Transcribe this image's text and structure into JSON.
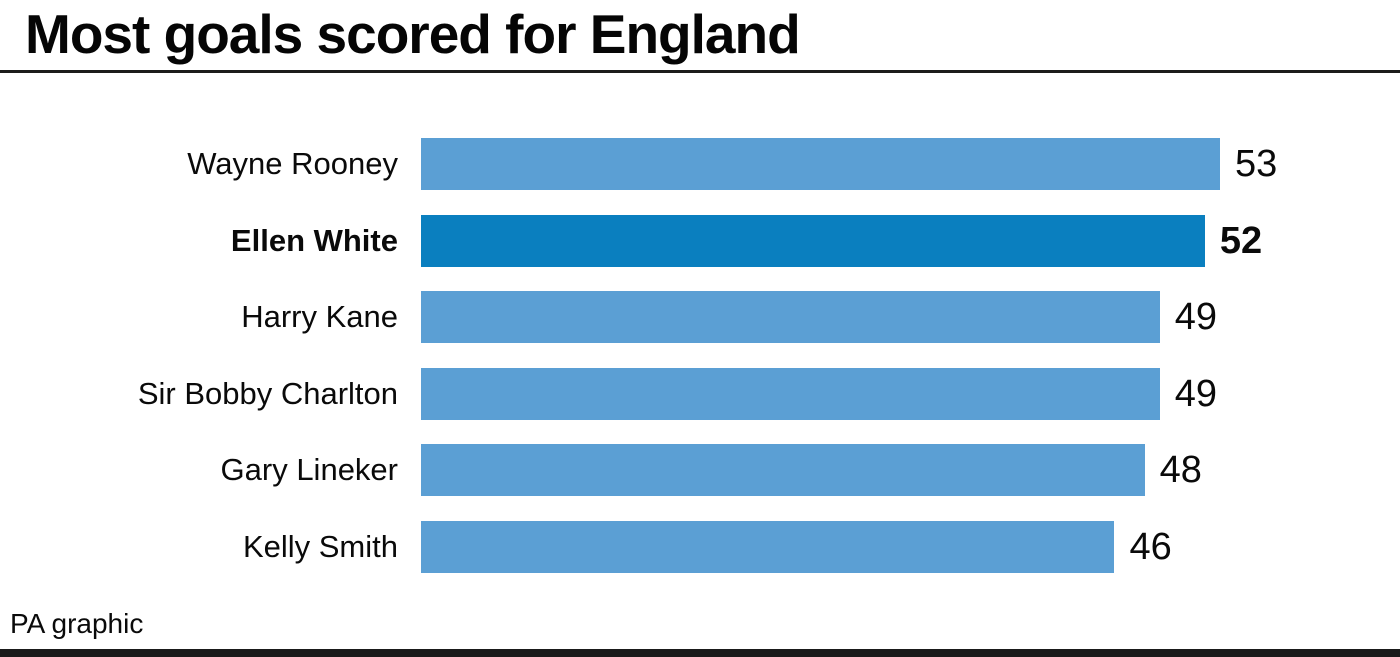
{
  "title": "Most goals scored for England",
  "footer": {
    "credit": "PA graphic"
  },
  "colors": {
    "bar": "#5b9fd4",
    "bar_highlight": "#0a7fbf",
    "text": "#0a0a0a",
    "rule": "#1d1d1b",
    "bottom_bar": "#1a1a1a"
  },
  "chart_data": {
    "type": "bar",
    "orientation": "horizontal",
    "title": "Most goals scored for England",
    "categories": [
      "Wayne Rooney",
      "Ellen White",
      "Harry Kane",
      "Sir Bobby Charlton",
      "Gary Lineker",
      "Kelly Smith"
    ],
    "values": [
      53,
      52,
      49,
      49,
      48,
      46
    ],
    "highlighted_category": "Ellen White",
    "value_labels_shown": true,
    "xlim": [
      0,
      53
    ],
    "grid": false,
    "legend": false,
    "source_label": "PA graphic"
  }
}
